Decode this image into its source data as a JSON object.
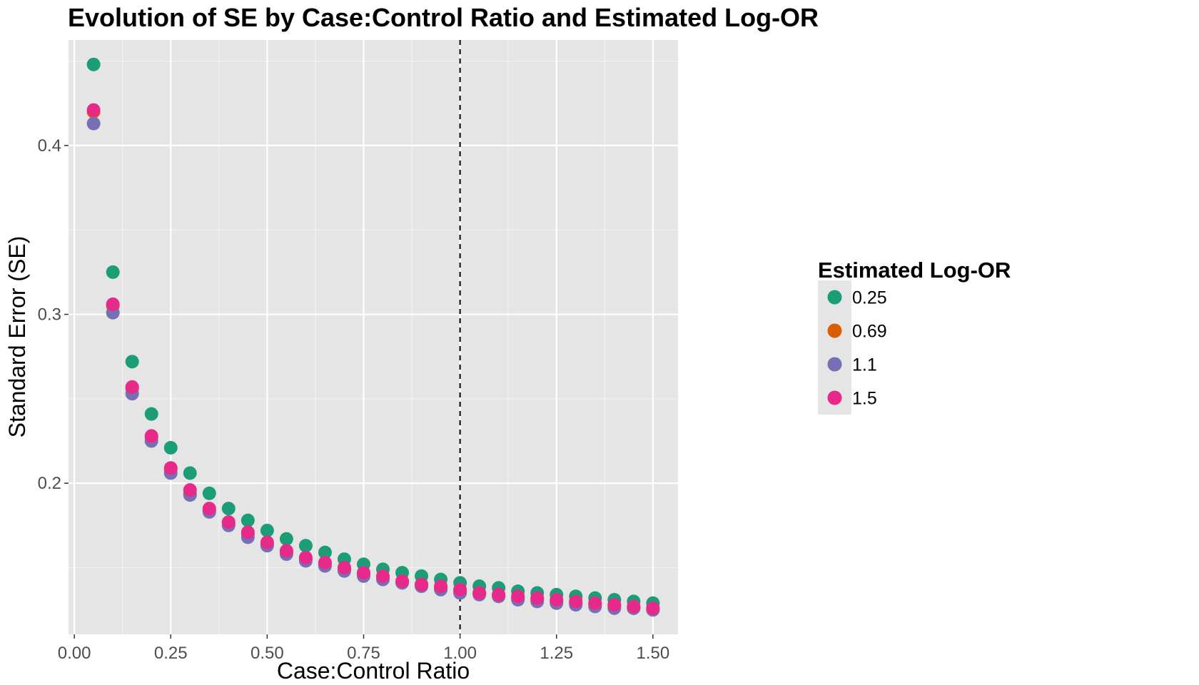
{
  "chart_data": {
    "type": "scatter",
    "title": "Evolution of SE by Case:Control Ratio and Estimated Log-OR",
    "xlabel": "Case:Control Ratio",
    "ylabel": "Standard Error (SE)",
    "xlim": [
      -0.015,
      1.565
    ],
    "ylim": [
      0.1105,
      0.4625
    ],
    "x_ticks": [
      0.0,
      0.25,
      0.5,
      0.75,
      1.0,
      1.25,
      1.5
    ],
    "x_tick_labels": [
      "0.00",
      "0.25",
      "0.50",
      "0.75",
      "1.00",
      "1.25",
      "1.50"
    ],
    "y_ticks": [
      0.2,
      0.3,
      0.4
    ],
    "y_tick_labels": [
      "0.2",
      "0.3",
      "0.4"
    ],
    "grid": true,
    "reference_line": {
      "axis": "x",
      "value": 1.0,
      "style": "dashed"
    },
    "legend": {
      "title": "Estimated Log-OR",
      "position": "right"
    },
    "x": [
      0.05,
      0.1,
      0.15,
      0.2,
      0.25,
      0.3,
      0.35,
      0.4,
      0.45,
      0.5,
      0.55,
      0.6,
      0.65,
      0.7,
      0.75,
      0.8,
      0.85,
      0.9,
      0.95,
      1.0,
      1.05,
      1.1,
      1.15,
      1.2,
      1.25,
      1.3,
      1.35,
      1.4,
      1.45,
      1.5
    ],
    "series": [
      {
        "name": "0.25",
        "color": "#1b9e77",
        "values": [
          0.448,
          0.325,
          0.272,
          0.241,
          0.221,
          0.206,
          0.194,
          0.185,
          0.178,
          0.172,
          0.167,
          0.163,
          0.159,
          0.155,
          0.152,
          0.149,
          0.147,
          0.145,
          0.143,
          0.141,
          0.139,
          0.138,
          0.136,
          0.135,
          0.134,
          0.133,
          0.132,
          0.131,
          0.13,
          0.129
        ]
      },
      {
        "name": "0.69",
        "color": "#d95f02",
        "values": [
          0.42,
          0.305,
          0.256,
          0.227,
          0.208,
          0.194,
          0.184,
          0.176,
          0.17,
          0.164,
          0.159,
          0.155,
          0.152,
          0.149,
          0.146,
          0.144,
          0.142,
          0.14,
          0.138,
          0.136,
          0.135,
          0.133,
          0.132,
          0.131,
          0.13,
          0.129,
          0.128,
          0.127,
          0.126,
          0.125
        ]
      },
      {
        "name": "1.1",
        "color": "#7570b3",
        "values": [
          0.413,
          0.301,
          0.253,
          0.225,
          0.206,
          0.193,
          0.183,
          0.175,
          0.168,
          0.163,
          0.158,
          0.154,
          0.151,
          0.148,
          0.145,
          0.143,
          0.141,
          0.139,
          0.137,
          0.135,
          0.134,
          0.133,
          0.131,
          0.13,
          0.129,
          0.128,
          0.127,
          0.126,
          0.126,
          0.125
        ]
      },
      {
        "name": "1.5",
        "color": "#e7298a",
        "values": [
          0.421,
          0.306,
          0.257,
          0.228,
          0.209,
          0.196,
          0.185,
          0.177,
          0.171,
          0.165,
          0.16,
          0.156,
          0.153,
          0.15,
          0.147,
          0.145,
          0.142,
          0.14,
          0.139,
          0.137,
          0.135,
          0.134,
          0.133,
          0.132,
          0.131,
          0.13,
          0.129,
          0.128,
          0.127,
          0.126
        ]
      }
    ]
  }
}
